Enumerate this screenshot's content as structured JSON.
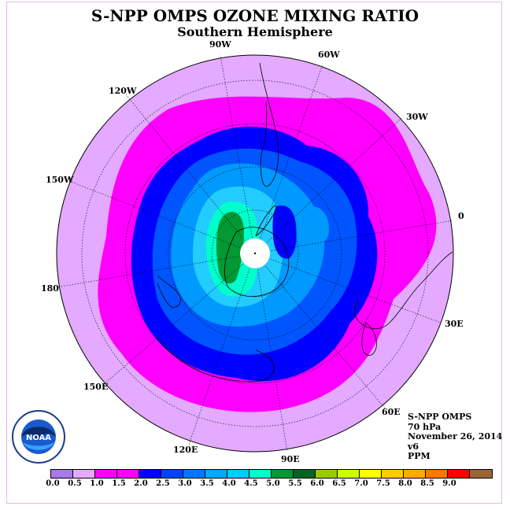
{
  "header": {
    "title": "S-NPP OMPS OZONE MIXING RATIO",
    "subtitle": "Southern Hemisphere"
  },
  "map": {
    "projection": "south-polar-stereographic",
    "longitude_labels": [
      "90W",
      "60W",
      "30W",
      "0",
      "30E",
      "60E",
      "90E",
      "120E",
      "150E",
      "180",
      "150W",
      "120W"
    ],
    "colors": {
      "background": "#e3aaff",
      "land_outline": "#000000"
    }
  },
  "info": {
    "instrument": "S-NPP OMPS",
    "level": "70 hPa",
    "date": "November 26, 2014",
    "version": "v6",
    "units": "PPM"
  },
  "colorbar": {
    "colors": [
      "#a87ae8",
      "#e3aaff",
      "#ff00ff",
      "#ff00ff",
      "#0000ff",
      "#0044ff",
      "#0077ff",
      "#00aaff",
      "#00ccff",
      "#00ffcc",
      "#009933",
      "#006622",
      "#99cc00",
      "#ccff00",
      "#ffff00",
      "#ffcc00",
      "#ffaa00",
      "#ff7700",
      "#ff0000",
      "#996633"
    ],
    "tick_labels": [
      "0.0",
      "0.5",
      "1.0",
      "1.5",
      "2.0",
      "2.5",
      "3.0",
      "3.5",
      "4.0",
      "4.5",
      "5.0",
      "5.5",
      "6.0",
      "6.5",
      "7.0",
      "7.5",
      "8.0",
      "8.5",
      "9.0"
    ]
  },
  "logo": {
    "text": "NOAA"
  }
}
